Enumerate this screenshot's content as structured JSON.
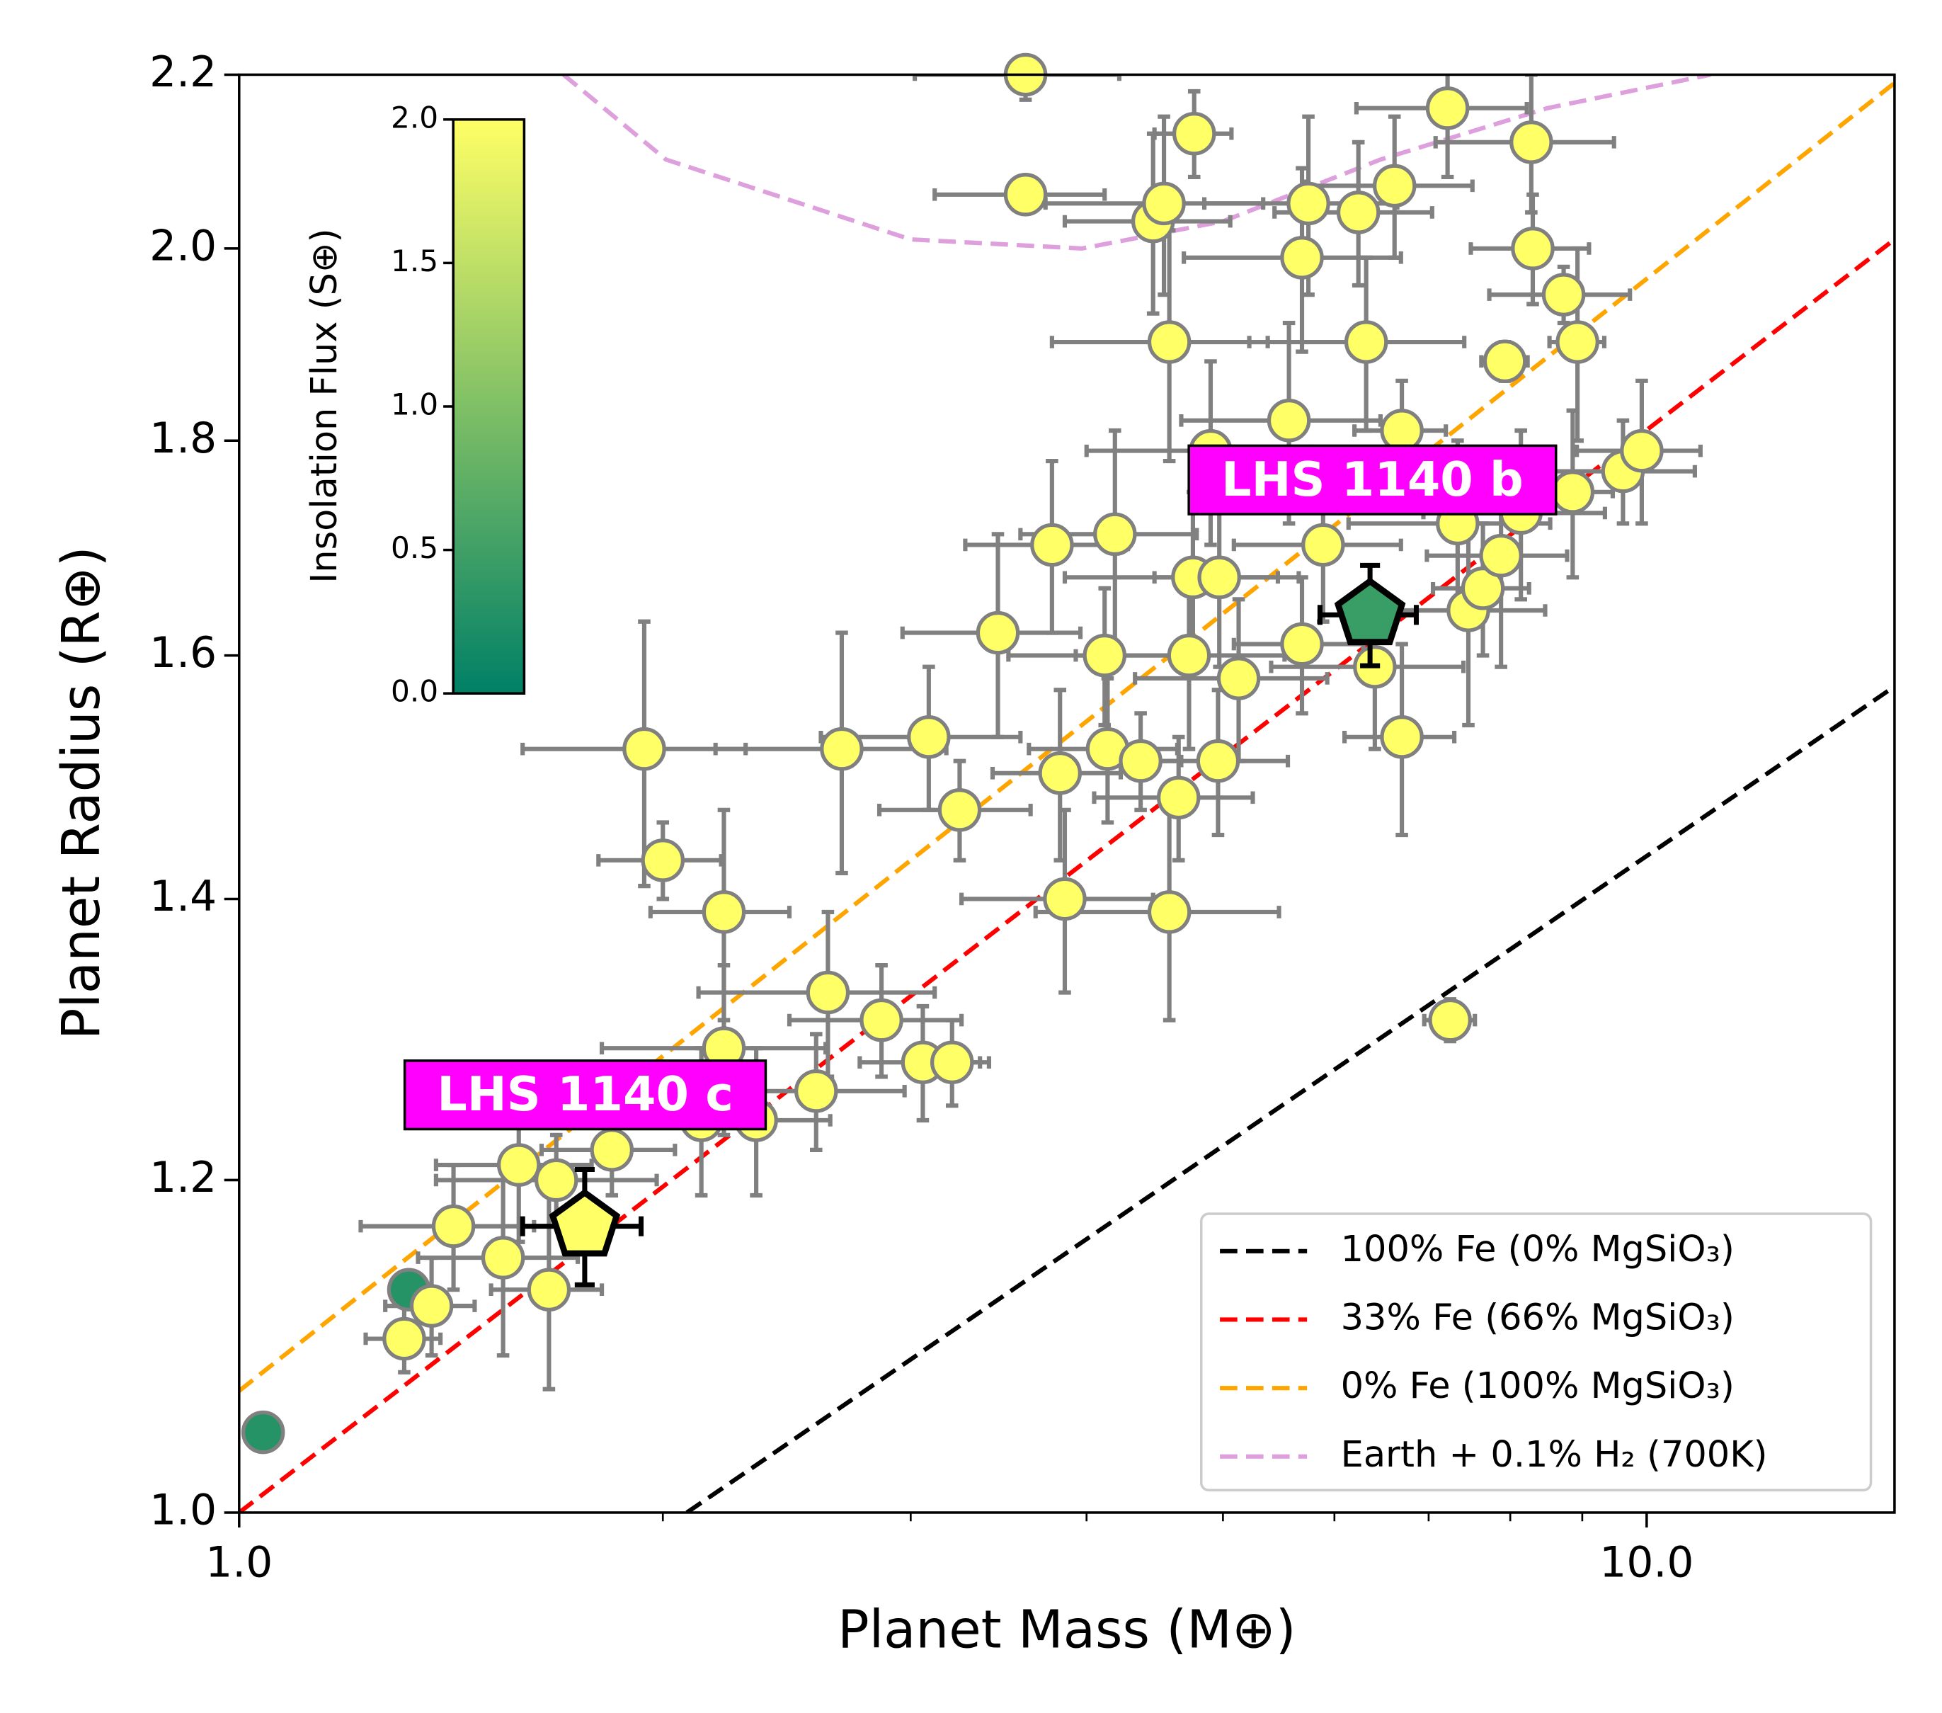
{
  "chart_data": {
    "type": "scatter",
    "xlabel": "Planet Mass (M⊕)",
    "ylabel": "Planet Radius (R⊕)",
    "xscale": "log",
    "yscale": "log",
    "xlim": [
      1,
      15
    ],
    "ylim": [
      1,
      2.2
    ],
    "xticks": [
      {
        "value": 1,
        "label": "1.0"
      },
      {
        "value": 10,
        "label": "10.0"
      }
    ],
    "xminorticks": [
      2,
      3,
      4,
      5,
      6,
      7,
      8,
      9
    ],
    "yticks": [
      {
        "value": 1,
        "label": "1.0"
      },
      1.2,
      1.4,
      1.6,
      1.8,
      {
        "value": 2,
        "label": "2.0"
      },
      2.2
    ],
    "points": {
      "edgecolor": "#808080",
      "errcolor": "#808080",
      "x": [
        1.04,
        1.32,
        1.31,
        1.37,
        1.42,
        1.54,
        1.58,
        1.66,
        1.68,
        1.84,
        1.94,
        2.0,
        2.13,
        2.21,
        2.21,
        2.33,
        2.57,
        2.62,
        2.68,
        2.86,
        3.06,
        3.09,
        3.21,
        3.25,
        3.46,
        3.62,
        3.62,
        3.78,
        3.83,
        3.86,
        4.12,
        4.14,
        4.19,
        4.37,
        4.46,
        4.54,
        4.58,
        4.58,
        4.65,
        4.73,
        4.76,
        4.77,
        4.9,
        4.97,
        4.96,
        5.13,
        5.57,
        5.69,
        5.69,
        5.75,
        5.89,
        6.24,
        6.32,
        6.41,
        6.62,
        6.7,
        6.7,
        7.22,
        7.25,
        7.34,
        7.47,
        7.65,
        7.88,
        7.93,
        8.14,
        8.28,
        8.3,
        8.73,
        8.86,
        8.93,
        9.62,
        9.92
      ],
      "y": [
        1.045,
        1.13,
        1.1,
        1.12,
        1.17,
        1.15,
        1.21,
        1.13,
        1.2,
        1.22,
        1.52,
        1.43,
        1.24,
        1.39,
        1.29,
        1.24,
        1.26,
        1.33,
        1.52,
        1.31,
        1.28,
        1.53,
        1.28,
        1.47,
        1.62,
        2.2,
        2.06,
        1.7,
        1.5,
        1.4,
        1.6,
        1.52,
        1.71,
        1.51,
        2.03,
        2.05,
        1.9,
        1.39,
        1.48,
        1.6,
        1.67,
        2.13,
        1.79,
        1.67,
        1.51,
        1.58,
        1.82,
        1.99,
        1.61,
        2.05,
        1.7,
        2.04,
        1.9,
        1.59,
        2.07,
        1.81,
        1.53,
        2.16,
        1.31,
        1.72,
        1.64,
        1.66,
        1.69,
        1.88,
        1.73,
        2.12,
        2.0,
        1.95,
        1.75,
        1.9,
        1.77,
        1.79
      ],
      "xerr": [
        null,
        null,
        0.08,
        0.1,
        0.2,
        0.2,
        0.2,
        0.15,
        0.3,
        0.2,
        0.35,
        0.2,
        0.2,
        0.25,
        0.4,
        0.3,
        0.4,
        0.5,
        0.5,
        0.4,
        0.3,
        0.5,
        0.2,
        0.4,
        0.5,
        0.6,
        0.5,
        0.5,
        0.4,
        0.6,
        0.6,
        0.5,
        0.6,
        0.3,
        0.6,
        0.8,
        0.8,
        0.9,
        0.6,
        0.8,
        0.9,
        0.3,
        0.9,
        0.5,
        0.6,
        0.8,
        0.9,
        1.0,
        0.6,
        0.9,
        0.8,
        0.8,
        1.1,
        1.0,
        0.9,
        0.5,
        0.6,
        1.0,
        0.3,
        1.2,
        1.0,
        0.6,
        0.9,
        0.3,
        1.2,
        1.2,
        0.8,
        1.0,
        0.6,
        0.4,
        1.2,
        1.0
      ],
      "yerr": [
        null,
        null,
        0.02,
        0.03,
        0.04,
        0.06,
        0.05,
        0.06,
        0.03,
        0.03,
        0.11,
        0.03,
        0.05,
        0.08,
        0.06,
        0.05,
        0.04,
        0.06,
        0.1,
        0.04,
        0.04,
        0.06,
        0.03,
        0.04,
        0.09,
        0.03,
        0.02,
        0.08,
        0.07,
        0.07,
        0.06,
        0.06,
        0.1,
        0.04,
        0.1,
        0.1,
        0.12,
        0.08,
        0.05,
        0.08,
        0.08,
        0.05,
        0.09,
        0.08,
        0.06,
        0.07,
        0.1,
        0.1,
        0.06,
        0.1,
        0.07,
        0.08,
        0.09,
        0.07,
        0.08,
        0.05,
        0.08,
        0.08,
        0.015,
        0.08,
        0.1,
        0.06,
        0.1,
        0.02,
        0.08,
        0.08,
        0.06,
        0.03,
        0.08,
        0.1,
        0.05,
        0.07
      ],
      "flux": [
        0.3,
        0.3,
        2,
        2,
        2,
        2,
        2,
        2,
        2,
        2,
        2,
        2,
        2,
        2,
        2,
        2,
        2,
        2,
        2,
        2,
        2,
        2,
        2,
        2,
        2,
        2,
        2,
        2,
        2,
        2,
        2,
        2,
        2,
        2,
        2,
        2,
        2,
        2,
        2,
        2,
        2,
        2,
        2,
        2,
        2,
        2,
        2,
        2,
        2,
        2,
        2,
        2,
        2,
        2,
        2,
        2,
        2,
        2,
        2,
        2,
        2,
        2,
        2,
        2,
        2,
        2,
        2,
        2,
        2,
        2,
        2,
        2
      ]
    },
    "planets": [
      {
        "label": "LHS 1140 b",
        "x": 6.36,
        "y": 1.636,
        "xerr": 0.5,
        "yerr": 0.045,
        "flux": 0.45
      },
      {
        "label": "LHS 1140 c",
        "x": 1.76,
        "y": 1.17,
        "xerr": 0.17,
        "yerr": 0.037,
        "flux": 2
      }
    ],
    "models": [
      {
        "name": "100% Fe (0% MgSiO₃)",
        "color": "#000000",
        "x": [
          2.08,
          15
        ],
        "y": [
          1.0,
          1.573
        ]
      },
      {
        "name": "33% Fe (66% MgSiO₃)",
        "color": "#ff0000",
        "x": [
          1,
          15
        ],
        "y": [
          1.0,
          2.01
        ]
      },
      {
        "name": "0% Fe (100% MgSiO₃)",
        "color": "#ffa500",
        "x": [
          1,
          15
        ],
        "y": [
          1.069,
          2.19
        ]
      },
      {
        "name": "Earth + 0.1% H₂ (700K)",
        "color": "#dda0dd",
        "x": [
          1.7,
          2.01,
          3.0,
          3.97,
          5.0,
          6.47,
          8.5,
          11.1
        ],
        "y": [
          2.2,
          2.1,
          2.01,
          2.0,
          2.03,
          2.1,
          2.16,
          2.2
        ]
      }
    ],
    "legend": "lower right",
    "colorbar": {
      "label": "Insolation Flux (S⊕)",
      "lim": [
        0,
        2
      ],
      "colormap": [
        "#008066",
        "#ffff66"
      ],
      "ticks": [
        {
          "value": 0,
          "label": "0.0"
        },
        0.5,
        {
          "value": 1,
          "label": "1.0"
        },
        1.5,
        {
          "value": 2,
          "label": "2.0"
        }
      ]
    }
  }
}
